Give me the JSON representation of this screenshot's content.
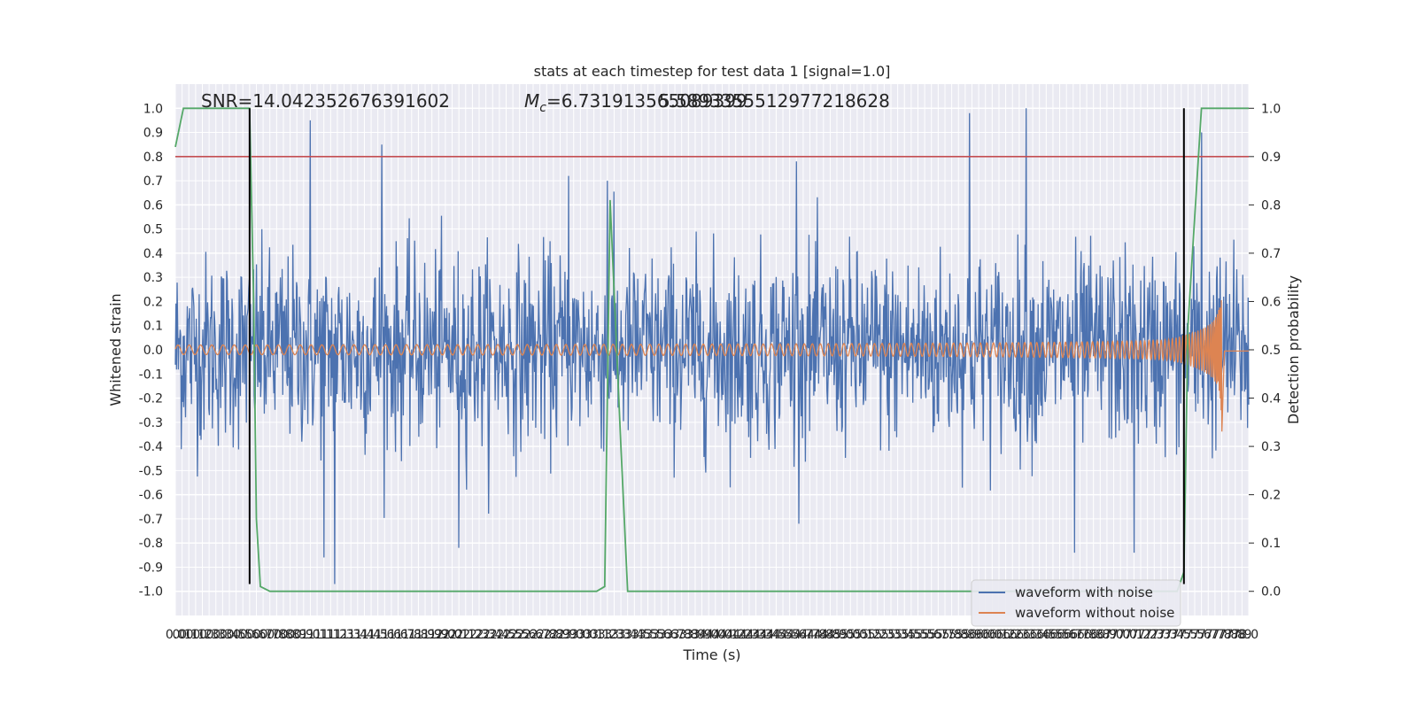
{
  "chart_data": {
    "type": "line",
    "title": "stats at each timestep for test data 1 [signal=1.0]",
    "xlabel": "Time (s)",
    "ylabel": "Whitened strain",
    "y2label": "Detection probability",
    "xlim": [
      0.0,
      7.95
    ],
    "ylim": [
      -1.1,
      1.1
    ],
    "y2lim": [
      -0.05,
      1.05
    ],
    "grid": true,
    "legend_placement": "lower-right",
    "background": "#eaeaf2",
    "x_tick_step": 0.05,
    "y_ticks": [
      -1.0,
      -0.9,
      -0.8,
      -0.7,
      -0.6,
      -0.5,
      -0.4,
      -0.3,
      -0.2,
      -0.1,
      0.0,
      0.1,
      0.2,
      0.3,
      0.4,
      0.5,
      0.6,
      0.7,
      0.8,
      0.9,
      1.0
    ],
    "y2_ticks": [
      0.0,
      0.1,
      0.2,
      0.3,
      0.4,
      0.5,
      0.6,
      0.7,
      0.8,
      0.9,
      1.0
    ],
    "annotations": {
      "snr": "SNR=14.042352676391602",
      "mc": "=6.731913565089399",
      "mc_overlap": "5.5893355512977218628",
      "mc_symbol": "M",
      "mc_sub": "c"
    },
    "series": [
      {
        "name": "waveform with noise",
        "color": "#4c72b0",
        "axis": "left",
        "noise_sigma": 0.2,
        "peaks": [
          {
            "x": 1.0,
            "y": 0.95
          },
          {
            "x": 1.53,
            "y": 0.85
          },
          {
            "x": 2.91,
            "y": 0.72
          },
          {
            "x": 3.2,
            "y": 0.7
          },
          {
            "x": 4.6,
            "y": 0.78
          },
          {
            "x": 5.88,
            "y": 0.98
          },
          {
            "x": 6.3,
            "y": 1.0
          },
          {
            "x": 7.6,
            "y": 0.9
          },
          {
            "x": 1.1,
            "y": -0.86
          },
          {
            "x": 1.18,
            "y": -0.97
          },
          {
            "x": 2.1,
            "y": -0.82
          },
          {
            "x": 6.66,
            "y": -0.84
          },
          {
            "x": 7.1,
            "y": -0.84
          }
        ]
      },
      {
        "name": "waveform without noise",
        "color": "#dd8452",
        "axis": "left",
        "chirp": {
          "t_merger": 7.75,
          "amp_start": 0.02,
          "amp_peak": 0.33,
          "amp_min_end": -0.36
        }
      },
      {
        "name": "detection probability",
        "color": "#55a868",
        "axis": "right",
        "x": [
          0.0,
          0.06,
          0.1,
          0.2,
          0.3,
          0.4,
          0.5,
          0.55,
          0.58,
          0.6,
          0.63,
          0.7,
          1.0,
          2.0,
          3.0,
          3.12,
          3.18,
          3.22,
          3.3,
          3.35,
          3.4,
          3.5,
          5.0,
          7.0,
          7.3,
          7.42,
          7.47,
          7.5,
          7.6,
          7.7,
          7.95
        ],
        "y": [
          0.92,
          1.0,
          1.0,
          1.0,
          1.0,
          1.0,
          1.0,
          1.0,
          0.6,
          0.15,
          0.01,
          0.0,
          0.0,
          0.0,
          0.0,
          0.0,
          0.01,
          0.81,
          0.3,
          0.0,
          0.0,
          0.0,
          0.0,
          0.0,
          0.0,
          0.0,
          0.04,
          0.55,
          1.0,
          1.0,
          1.0
        ]
      }
    ],
    "threshold": {
      "y": 0.9,
      "axis": "right",
      "color": "#c44e52"
    },
    "vlines": [
      {
        "x": 0.55,
        "color": "#000000",
        "ymin": -0.97,
        "ymax": 1.0
      },
      {
        "x": 7.47,
        "color": "#000000",
        "ymin": -0.97,
        "ymax": 1.0
      }
    ]
  }
}
